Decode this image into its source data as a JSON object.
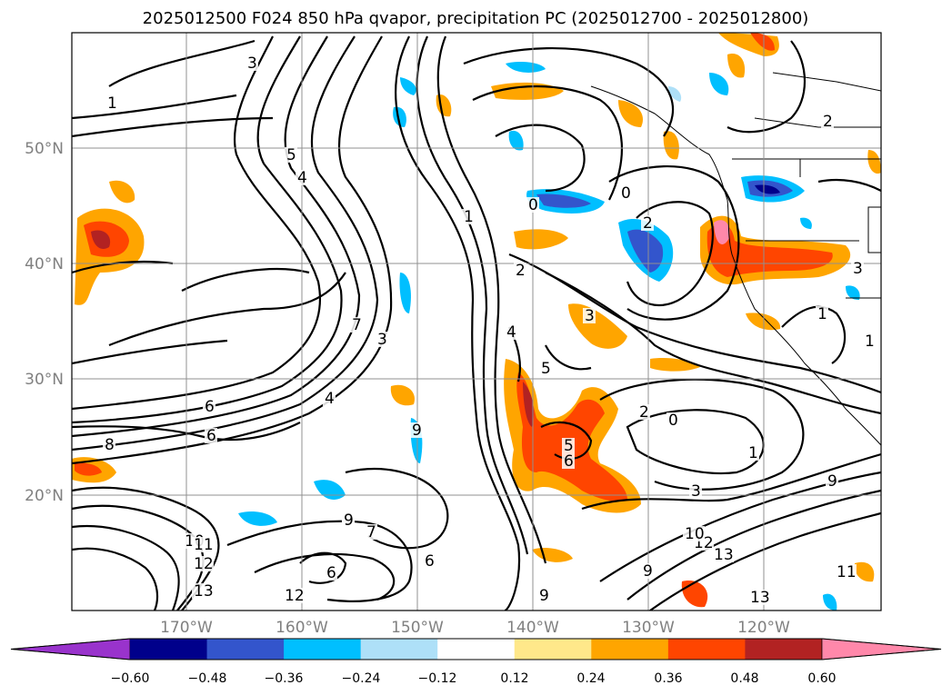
{
  "title": "2025012500 F024 850 hPa qvapor, precipitation PC (2025012700 - 2025012800)",
  "lat_labels": [
    "50°N",
    "40°N",
    "30°N",
    "20°N"
  ],
  "lon_labels": [
    "170°W",
    "160°W",
    "150°W",
    "140°W",
    "130°W",
    "120°W"
  ],
  "colorbar": {
    "ticks": [
      "−0.60",
      "−0.48",
      "−0.36",
      "−0.24",
      "−0.12",
      "0.12",
      "0.24",
      "0.36",
      "0.48",
      "0.60"
    ],
    "colors": [
      "#9933cc",
      "#00008b",
      "#3355cc",
      "#00bfff",
      "#aee0f8",
      "#ffffff",
      "#ffe88a",
      "#ffa500",
      "#ff4500",
      "#b22222",
      "#ff88aa"
    ]
  },
  "contour_labels": [
    "3",
    "1",
    "5",
    "4",
    "2",
    "0",
    "1",
    "4",
    "5",
    "3",
    "6",
    "7",
    "4",
    "6",
    "8",
    "9",
    "9",
    "10",
    "11",
    "12",
    "13",
    "12",
    "9",
    "7",
    "6",
    "6",
    "9",
    "2",
    "0",
    "2",
    "5",
    "6",
    "3",
    "1",
    "9",
    "11",
    "13",
    "13",
    "12",
    "10",
    "9",
    "1",
    "2",
    "3",
    "0",
    "0",
    "1",
    "3"
  ],
  "colors": {
    "contour": "#000000",
    "grid": "#909090",
    "axis_label": "#808080"
  }
}
